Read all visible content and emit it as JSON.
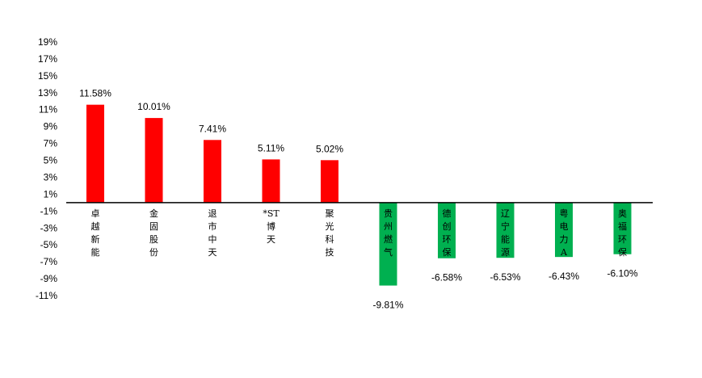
{
  "chart_data": {
    "type": "bar",
    "title": "",
    "xlabel": "",
    "ylabel": "",
    "ylim": [
      -11,
      19
    ],
    "yticks": [
      19,
      17,
      15,
      13,
      11,
      9,
      7,
      5,
      3,
      1,
      -1,
      -3,
      -5,
      -7,
      -9,
      -11
    ],
    "ytick_labels": [
      "19%",
      "17%",
      "15%",
      "13%",
      "11%",
      "9%",
      "7%",
      "5%",
      "3%",
      "1%",
      "-1%",
      "-3%",
      "-5%",
      "-7%",
      "-9%",
      "-11%"
    ],
    "grid": false,
    "legend": "none",
    "categories": [
      "卓越新能",
      "金固股份",
      "退市中天",
      "*ST博天",
      "聚光科技",
      "贵州燃气",
      "德创环保",
      "辽宁能源",
      "粤电力A",
      "奥福环保"
    ],
    "category_lines": [
      [
        "卓",
        "越",
        "新",
        "能"
      ],
      [
        "金",
        "固",
        "股",
        "份"
      ],
      [
        "退",
        "市",
        "中",
        "天"
      ],
      [
        "*ST",
        "博",
        "天"
      ],
      [
        "聚",
        "光",
        "科",
        "技"
      ],
      [
        "贵",
        "州",
        "燃",
        "气"
      ],
      [
        "德",
        "创",
        "环",
        "保"
      ],
      [
        "辽",
        "宁",
        "能",
        "源"
      ],
      [
        "粤",
        "电",
        "力",
        "A"
      ],
      [
        "奥",
        "福",
        "环",
        "保"
      ]
    ],
    "values": [
      11.58,
      10.01,
      7.41,
      5.11,
      5.02,
      -9.81,
      -6.58,
      -6.53,
      -6.43,
      -6.1
    ],
    "value_labels": [
      "11.58%",
      "10.01%",
      "7.41%",
      "5.11%",
      "5.02%",
      "-9.81%",
      "-6.58%",
      "-6.53%",
      "-6.43%",
      "-6.10%"
    ],
    "colors": {
      "positive": "#ff0000",
      "negative": "#00b050",
      "axis": "#000000"
    }
  }
}
